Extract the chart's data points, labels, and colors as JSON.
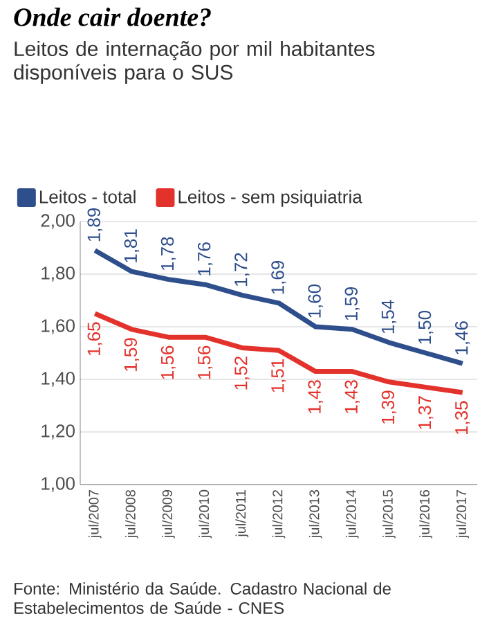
{
  "chart_data": {
    "type": "line",
    "title": "Onde cair doente?",
    "subtitle": "Leitos de internação por mil habitantes disponíveis para o SUS",
    "categories": [
      "jul/2007",
      "jul/2008",
      "jul/2009",
      "jul/2010",
      "jul/2011",
      "jul/2012",
      "jul/2013",
      "jul/2014",
      "jul/2015",
      "jul/2016",
      "jul/2017"
    ],
    "series": [
      {
        "name": "Leitos - total",
        "color": "#2e4e8c",
        "values": [
          1.89,
          1.81,
          1.78,
          1.76,
          1.72,
          1.69,
          1.6,
          1.59,
          1.54,
          1.5,
          1.46
        ],
        "value_labels": [
          "1,89",
          "1,81",
          "1,78",
          "1,76",
          "1,72",
          "1,69",
          "1,60",
          "1,59",
          "1,54",
          "1,50",
          "1,46"
        ]
      },
      {
        "name": "Leitos - sem psiquiatria",
        "color": "#e3322b",
        "values": [
          1.65,
          1.59,
          1.56,
          1.56,
          1.52,
          1.51,
          1.43,
          1.43,
          1.39,
          1.37,
          1.35
        ],
        "value_labels": [
          "1,65",
          "1,59",
          "1,56",
          "1,56",
          "1,52",
          "1,51",
          "1,43",
          "1,43",
          "1,39",
          "1,37",
          "1,35"
        ]
      }
    ],
    "ylim": [
      1.0,
      2.0
    ],
    "yticks": [
      {
        "value": 1.0,
        "label": "1,00"
      },
      {
        "value": 1.2,
        "label": "1,20"
      },
      {
        "value": 1.4,
        "label": "1,40"
      },
      {
        "value": 1.6,
        "label": "1,60"
      },
      {
        "value": 1.8,
        "label": "1,80"
      },
      {
        "value": 2.0,
        "label": "2,00"
      }
    ],
    "grid": "y",
    "legend": "top",
    "marker": "none",
    "line_style": "solid",
    "annotations": [
      "Fonte: Ministério da Saúde. Cadastro Nacional de Estabelecimentos de Saúde - CNES"
    ]
  }
}
